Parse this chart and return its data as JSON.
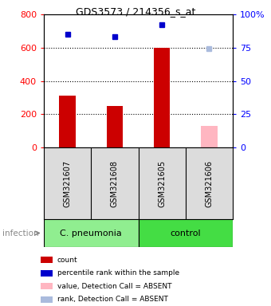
{
  "title": "GDS3573 / 214356_s_at",
  "samples": [
    "GSM321607",
    "GSM321608",
    "GSM321605",
    "GSM321606"
  ],
  "counts": [
    310,
    250,
    600,
    null
  ],
  "counts_absent": [
    null,
    null,
    null,
    130
  ],
  "percentile": [
    85,
    83,
    92,
    null
  ],
  "percentile_absent": [
    null,
    null,
    null,
    74
  ],
  "ylim_left": [
    0,
    800
  ],
  "ylim_right": [
    0,
    100
  ],
  "yticks_left": [
    0,
    200,
    400,
    600,
    800
  ],
  "yticks_right": [
    0,
    25,
    50,
    75,
    100
  ],
  "ytick_labels_right": [
    "0",
    "25",
    "50",
    "75",
    "100%"
  ],
  "groups": [
    {
      "label": "C. pneumonia",
      "color": "#90EE90",
      "samples": [
        0,
        1
      ]
    },
    {
      "label": "control",
      "color": "#44DD44",
      "samples": [
        2,
        3
      ]
    }
  ],
  "bar_color_present": "#CC0000",
  "bar_color_absent": "#FFB6C1",
  "dot_color_present": "#0000CC",
  "dot_color_absent": "#AABBDD",
  "bar_width": 0.35,
  "group_label": "infection",
  "legend_items": [
    {
      "label": "count",
      "color": "#CC0000"
    },
    {
      "label": "percentile rank within the sample",
      "color": "#0000CC"
    },
    {
      "label": "value, Detection Call = ABSENT",
      "color": "#FFB6C1"
    },
    {
      "label": "rank, Detection Call = ABSENT",
      "color": "#AABBDD"
    }
  ],
  "gridline_values": [
    200,
    400,
    600
  ],
  "sample_box_color": "#DCDCDC",
  "fig_width": 3.4,
  "fig_height": 3.84,
  "dpi": 100
}
